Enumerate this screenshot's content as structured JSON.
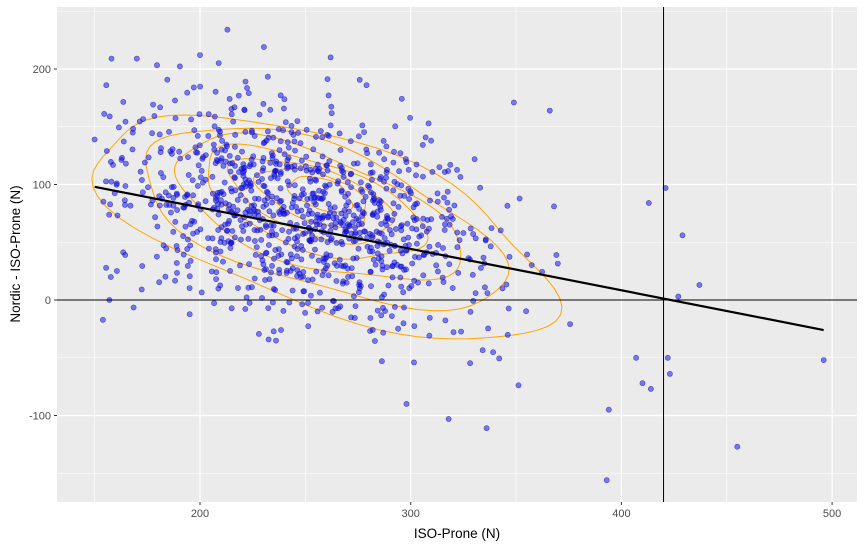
{
  "chart_data": {
    "type": "scatter",
    "title": "",
    "xlabel": "ISO-Prone (N)",
    "ylabel": "Nordic - ISO-Prone (N)",
    "xlim": [
      133,
      512
    ],
    "ylim": [
      -174,
      255
    ],
    "x_ticks": [
      200,
      300,
      400,
      500
    ],
    "y_ticks": [
      -100,
      0,
      100,
      200
    ],
    "grid": true,
    "legend": null,
    "colors": {
      "panel_background": "#EBEBEB",
      "grid_major": "#FFFFFF",
      "points_fill": "#0000FF",
      "points_alpha": 0.5,
      "density_contours": "#FFA500",
      "regression_line": "#000000",
      "reference_lines": "#000000"
    },
    "reference_lines": {
      "horizontal_y": 0,
      "vertical_x": 420
    },
    "regression_line": {
      "x": [
        150,
        496
      ],
      "y": [
        98,
        -26
      ]
    },
    "density_center": {
      "x": 255,
      "y": 90
    },
    "cluster": {
      "n_points_approx": 1000,
      "x_mean": 250,
      "x_sd": 45,
      "y_mean": 62,
      "y_sd": 45
    },
    "notable_points": [
      {
        "x": 213,
        "y": 234
      },
      {
        "x": 200,
        "y": 212
      },
      {
        "x": 158,
        "y": 209
      },
      {
        "x": 170,
        "y": 209
      },
      {
        "x": 262,
        "y": 210
      },
      {
        "x": 279,
        "y": 186
      },
      {
        "x": 349,
        "y": 171
      },
      {
        "x": 366,
        "y": 164
      },
      {
        "x": 421,
        "y": 97
      },
      {
        "x": 437,
        "y": 13
      },
      {
        "x": 429,
        "y": 56
      },
      {
        "x": 413,
        "y": 84
      },
      {
        "x": 427,
        "y": 3
      },
      {
        "x": 422,
        "y": -50
      },
      {
        "x": 423,
        "y": -64
      },
      {
        "x": 407,
        "y": -50
      },
      {
        "x": 410,
        "y": -72
      },
      {
        "x": 414,
        "y": -77
      },
      {
        "x": 496,
        "y": -52
      },
      {
        "x": 455,
        "y": -127
      },
      {
        "x": 393,
        "y": -156
      },
      {
        "x": 394,
        "y": -95
      },
      {
        "x": 336,
        "y": -111
      },
      {
        "x": 318,
        "y": -103
      },
      {
        "x": 298,
        "y": -90
      },
      {
        "x": 150,
        "y": 139
      },
      {
        "x": 157,
        "y": 0
      }
    ]
  },
  "axes": {
    "x_title": "ISO-Prone (N)",
    "y_title": "Nordic - ISO-Prone (N)",
    "x_tick_labels": [
      "200",
      "300",
      "400",
      "500"
    ],
    "y_tick_labels": [
      "200",
      "100",
      "0",
      "-100"
    ]
  }
}
